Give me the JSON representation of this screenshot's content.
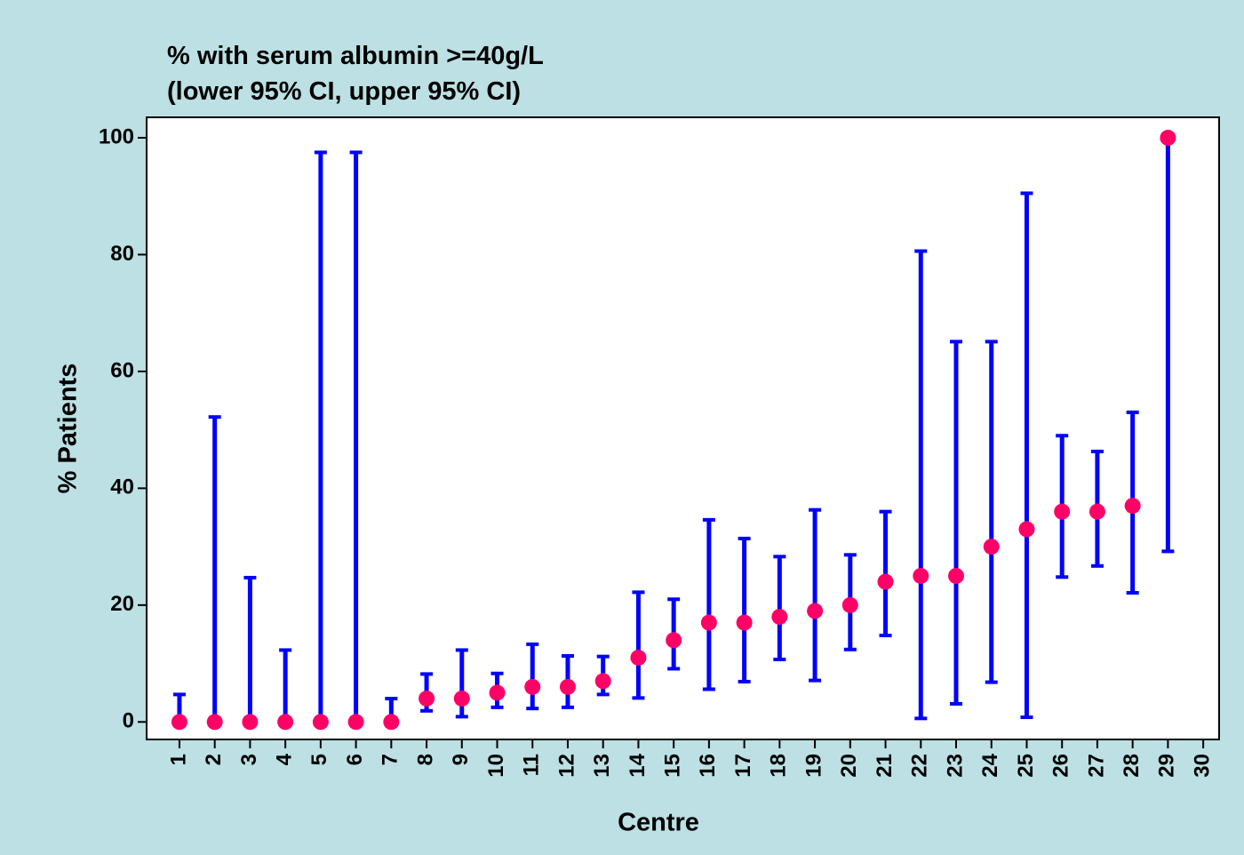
{
  "chart_data": {
    "type": "errorbar",
    "title": "% with serum albumin >=40g/L",
    "subtitle": "(lower 95% CI, upper 95% CI)",
    "y_label": "% Patients",
    "x_label": "Centre",
    "x": [
      1,
      2,
      3,
      4,
      5,
      6,
      7,
      8,
      9,
      10,
      11,
      12,
      13,
      14,
      15,
      16,
      17,
      18,
      19,
      20,
      21,
      22,
      23,
      24,
      25,
      26,
      27,
      28,
      29
    ],
    "values": [
      0,
      0,
      0,
      0,
      0,
      0,
      0,
      4,
      4,
      5,
      6,
      6,
      7,
      11,
      14,
      17,
      17,
      18,
      19,
      20,
      24,
      25,
      25,
      30,
      33,
      36,
      36,
      37,
      100
    ],
    "lower": [
      0,
      0,
      0,
      0,
      0,
      0,
      0,
      1.9,
      0.9,
      2.5,
      2.3,
      2.5,
      4.7,
      4.1,
      9.1,
      5.6,
      6.9,
      10.7,
      7.1,
      12.4,
      14.8,
      0.6,
      3.1,
      6.8,
      0.8,
      24.8,
      26.7,
      22.1,
      29.2
    ],
    "upper": [
      4.7,
      52.2,
      24.7,
      12.3,
      97.5,
      97.5,
      4.0,
      8.2,
      12.3,
      8.3,
      13.3,
      11.3,
      11.2,
      22.2,
      21,
      34.6,
      31.4,
      28.3,
      36.3,
      28.6,
      36,
      80.6,
      65.1,
      65.1,
      90.5,
      49,
      46.3,
      53,
      100
    ],
    "color": "#ff0066",
    "error_color": "#0000ff",
    "xlim": [
      0.07,
      30.45
    ],
    "xticks": [
      1,
      2,
      3,
      4,
      5,
      6,
      7,
      8,
      9,
      10,
      11,
      12,
      13,
      14,
      15,
      16,
      17,
      18,
      19,
      20,
      21,
      22,
      23,
      24,
      25,
      26,
      27,
      28,
      29,
      30
    ],
    "ylim": [
      -3,
      103.5
    ],
    "yticks": [
      0,
      20,
      40,
      60,
      80,
      100
    ]
  }
}
